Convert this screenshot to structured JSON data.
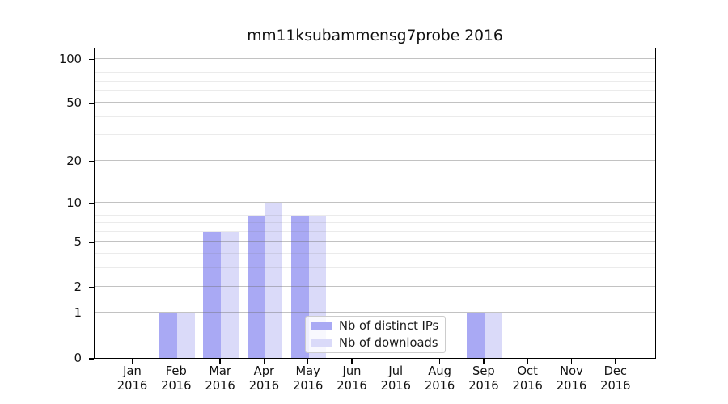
{
  "title": "mm11ksubammensg7probe 2016",
  "colors": {
    "distinct_ips_bar": "#a9a9f4",
    "downloads_bar": "#dadaf9",
    "axis": "#000000",
    "legend_border": "#cccccc"
  },
  "legend": {
    "items": [
      {
        "label": "Nb of distinct IPs",
        "color_key": "distinct_ips_bar"
      },
      {
        "label": "Nb of downloads",
        "color_key": "downloads_bar"
      }
    ],
    "position": "lower center"
  },
  "chart_data": {
    "type": "bar",
    "title": "mm11ksubammensg7probe 2016",
    "categories": [
      "Jan",
      "Feb",
      "Mar",
      "Apr",
      "May",
      "Jun",
      "Jul",
      "Aug",
      "Sep",
      "Oct",
      "Nov",
      "Dec"
    ],
    "category_sub_label": "2016",
    "series": [
      {
        "name": "Nb of distinct IPs",
        "values": [
          0,
          1,
          6,
          8,
          8,
          0,
          0,
          0,
          1,
          0,
          0,
          0
        ]
      },
      {
        "name": "Nb of downloads",
        "values": [
          0,
          1,
          6,
          10,
          8,
          0,
          0,
          0,
          1,
          0,
          0,
          0
        ]
      }
    ],
    "xlabel": "",
    "ylabel": "",
    "y_scale": "log1p",
    "ylim": [
      0,
      120
    ],
    "y_ticks": [
      0,
      1,
      2,
      5,
      10,
      20,
      50,
      100
    ],
    "y_minor_ticks": [
      3,
      4,
      6,
      7,
      8,
      9,
      30,
      40,
      60,
      70,
      80,
      90
    ],
    "grid": true,
    "legend_position": "lower center"
  }
}
